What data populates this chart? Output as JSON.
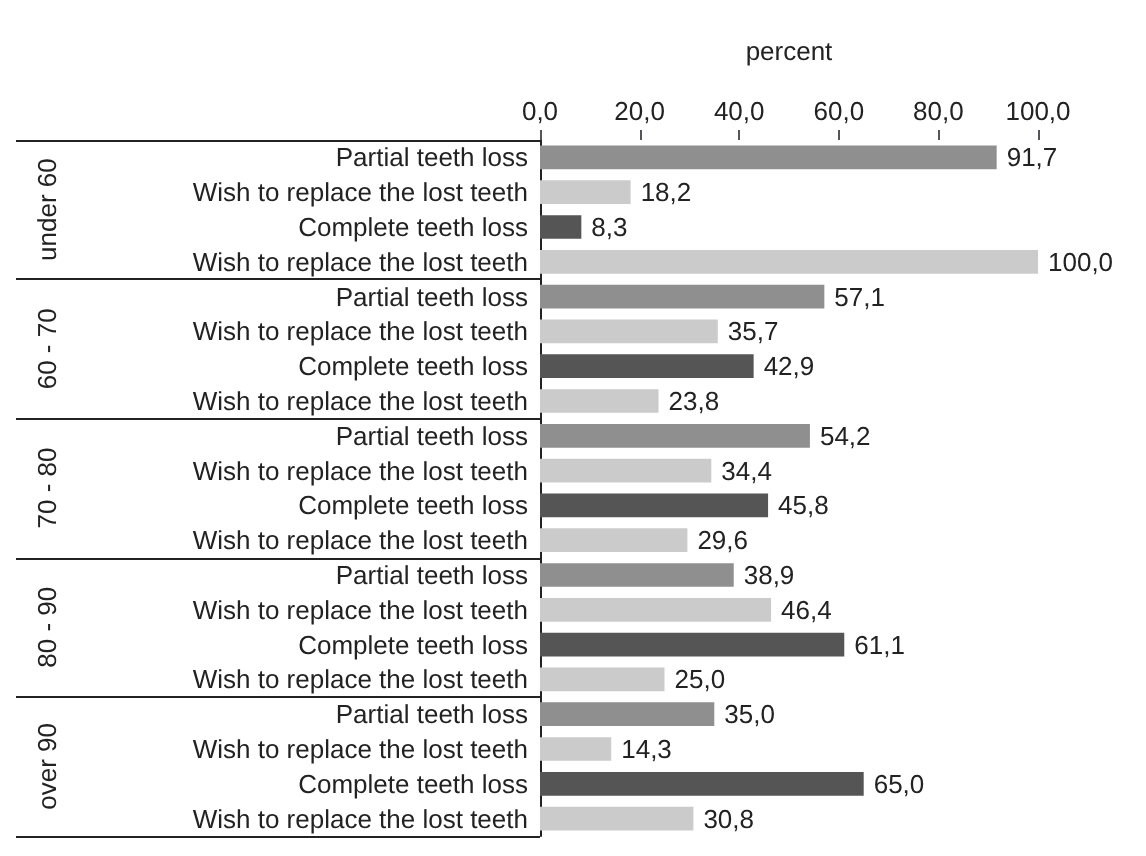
{
  "chart_data": {
    "type": "bar",
    "orientation": "horizontal",
    "xlabel": "percent",
    "categories": [
      "Partial teeth loss",
      "Wish to replace the lost teeth",
      "Complete teeth loss",
      "Wish to replace the lost teeth",
      "Partial teeth loss",
      "Wish to replace the lost teeth",
      "Complete teeth loss",
      "Wish to replace the lost teeth",
      "Partial teeth loss",
      "Wish to replace the lost teeth",
      "Complete teeth loss",
      "Wish to replace the lost teeth",
      "Partial teeth loss",
      "Wish to replace the lost teeth",
      "Complete teeth loss",
      "Wish to replace the lost teeth",
      "Partial teeth loss",
      "Wish to replace the lost teeth",
      "Complete teeth loss",
      "Wish to replace the lost teeth"
    ],
    "values": [
      91.7,
      18.2,
      8.3,
      100.0,
      57.1,
      35.7,
      42.9,
      23.8,
      54.2,
      34.4,
      45.8,
      29.6,
      38.9,
      46.4,
      61.1,
      25.0,
      35.0,
      14.3,
      65.0,
      30.8
    ],
    "value_labels": [
      "91,7",
      "18,2",
      "8,3",
      "100,0",
      "57,1",
      "35,7",
      "42,9",
      "23,8",
      "54,2",
      "34,4",
      "45,8",
      "29,6",
      "38,9",
      "46,4",
      "61,1",
      "25,0",
      "35,0",
      "14,3",
      "65,0",
      "30,8"
    ],
    "colors": [
      "#8f8f8f",
      "#cbcbcb",
      "#555555",
      "#cbcbcb",
      "#8f8f8f",
      "#cbcbcb",
      "#555555",
      "#cbcbcb",
      "#8f8f8f",
      "#cbcbcb",
      "#555555",
      "#cbcbcb",
      "#8f8f8f",
      "#cbcbcb",
      "#555555",
      "#cbcbcb",
      "#8f8f8f",
      "#cbcbcb",
      "#555555",
      "#cbcbcb"
    ],
    "annotations": [
      "under 60",
      "60 - 70",
      "70 - 80",
      "80 - 90",
      "over 90"
    ],
    "xlim": [
      0,
      100
    ],
    "xticks": [
      {
        "value": 0,
        "label": "0,0"
      },
      {
        "value": 20,
        "label": "20,0"
      },
      {
        "value": 40,
        "label": "40,0"
      },
      {
        "value": 60,
        "label": "60,0"
      },
      {
        "value": 80,
        "label": "80,0"
      },
      {
        "value": 100,
        "label": "100,0"
      }
    ],
    "grid": false
  }
}
